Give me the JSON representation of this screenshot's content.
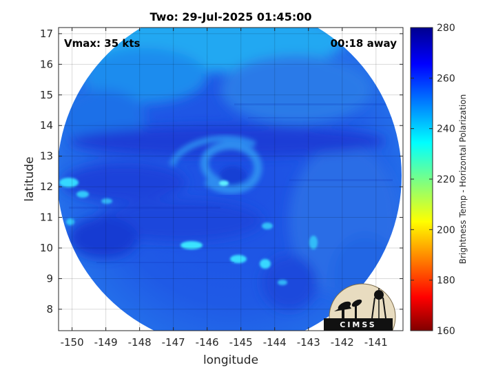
{
  "title": "Two: 29-Jul-2025 01:45:00",
  "annotations": {
    "vmax": "Vmax: 35 kts",
    "away": "00:18 away"
  },
  "axes": {
    "xlabel": "longitude",
    "ylabel": "latitude",
    "xlim": [
      -150.4,
      -140.2
    ],
    "ylim": [
      7.3,
      17.2
    ],
    "xticks": [
      -150,
      -149,
      -148,
      -147,
      -146,
      -145,
      -144,
      -143,
      -142,
      -141
    ],
    "yticks": [
      8,
      9,
      10,
      11,
      12,
      13,
      14,
      15,
      16,
      17
    ],
    "grid": true
  },
  "colorbar": {
    "label": "Brightness Temp - Horizontal Polarization",
    "range": [
      160,
      280
    ],
    "ticks": [
      160,
      180,
      200,
      220,
      240,
      260,
      280
    ],
    "colormap": "jet"
  },
  "logo": {
    "text": "CIMSS"
  },
  "colors": {
    "swath_dominant": "#1f5ae6",
    "swath_cold_bands": "#1a3cd8",
    "swath_warm_edge": "#20a0f0",
    "hot_spots": "#35e6ff",
    "logo_bg": "#e8dcc0"
  },
  "chart_data": {
    "type": "heatmap",
    "title": "Two: 29-Jul-2025 01:45:00",
    "xlabel": "longitude",
    "ylabel": "latitude",
    "x_range": [
      -150.4,
      -140.2
    ],
    "y_range": [
      7.3,
      17.2
    ],
    "value_range": [
      160,
      280
    ],
    "swath_center": [
      -145.3,
      12.3
    ],
    "storm_center": [
      -145.7,
      12.4
    ],
    "features": [
      {
        "description": "broad background",
        "tb_approx": 255
      },
      {
        "description": "warm (cyan) northern edge",
        "tb_approx": 243
      },
      {
        "description": "cold band near 13.6N",
        "tb_approx": 262
      },
      {
        "description": "convective spots near 10N",
        "tb_approx": 235
      }
    ]
  }
}
